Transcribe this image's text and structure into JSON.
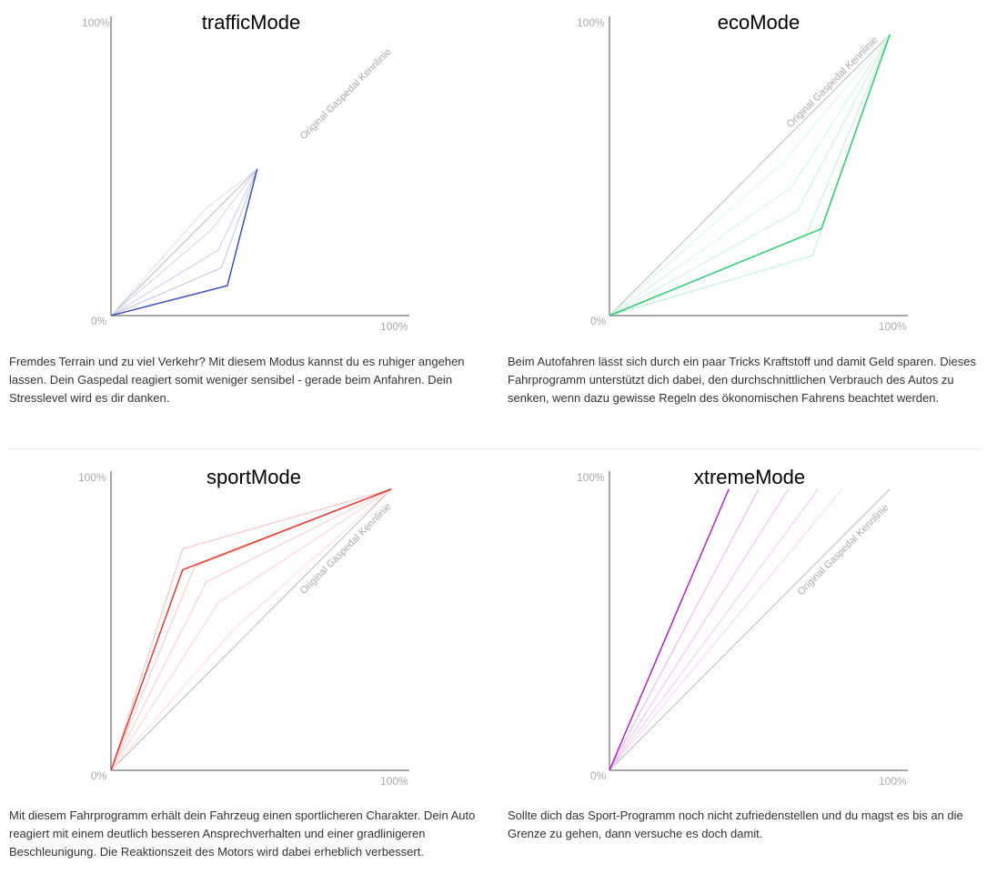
{
  "axis_labels": {
    "origin": "0%",
    "max": "100%"
  },
  "diagonal_label": "Original Gaspedal Kennlinie",
  "colors": {
    "axis": "#888888",
    "baseline": "#bbbbbb"
  },
  "panels": [
    {
      "title": "trafficMode",
      "color": "#3f51b5",
      "description": "Fremdes Terrain und zu viel Verkehr? Mit diesem Modus kannst du es ruhiger angehen lassen. Dein Gaspedal reagiert somit weniger sensibel - gerade beim Anfahren. Dein Stresslevel wird es dir danken."
    },
    {
      "title": "ecoMode",
      "color": "#2ecc71",
      "description": "Beim Autofahren lässt sich durch ein paar Tricks Kraftstoff und damit Geld sparen. Dieses Fahrprogramm unterstützt dich dabei, den durchschnittlichen Verbrauch des Autos zu senken, wenn dazu gewisse Regeln des ökonomischen Fahrens beachtet werden."
    },
    {
      "title": "sportMode",
      "color": "#e53935",
      "description": "Mit diesem Fahrprogramm erhält dein Fahrzeug einen sportlicheren Charakter. Dein Auto reagiert mit einem deutlich besseren Ansprechverhalten und einer gradlinigeren Beschleunigung. Die Reaktionszeit des Motors wird dabei erheblich verbessert."
    },
    {
      "title": "xtremeMode",
      "color": "#b620c9",
      "description": "Sollte dich das Sport-Programm noch nicht zufriedenstellen und du magst es bis an die Grenze zu gehen, dann versuche es doch damit."
    }
  ],
  "chart_data": [
    {
      "type": "line",
      "title": "trafficMode",
      "xlim": [
        0,
        100
      ],
      "ylim": [
        0,
        100
      ],
      "series": [
        {
          "name": "Original Gaspedal Kennlinie",
          "x": [
            0,
            49
          ],
          "y": [
            0,
            49
          ],
          "role": "baseline"
        },
        {
          "x": [
            0,
            32,
            49
          ],
          "y": [
            0,
            36,
            49
          ],
          "role": "step"
        },
        {
          "x": [
            0,
            34,
            49
          ],
          "y": [
            0,
            29,
            49
          ],
          "role": "step"
        },
        {
          "x": [
            0,
            36,
            49
          ],
          "y": [
            0,
            22,
            49
          ],
          "role": "step"
        },
        {
          "x": [
            0,
            37,
            49
          ],
          "y": [
            0,
            16,
            49
          ],
          "role": "step"
        },
        {
          "x": [
            0,
            39,
            49
          ],
          "y": [
            0,
            10,
            49
          ],
          "role": "mode"
        }
      ]
    },
    {
      "type": "line",
      "title": "ecoMode",
      "xlim": [
        0,
        100
      ],
      "ylim": [
        0,
        100
      ],
      "series": [
        {
          "name": "Original Gaspedal Kennlinie",
          "x": [
            0,
            94
          ],
          "y": [
            0,
            94
          ],
          "role": "baseline"
        },
        {
          "x": [
            0,
            58,
            94
          ],
          "y": [
            0,
            51,
            94
          ],
          "role": "step"
        },
        {
          "x": [
            0,
            61,
            94
          ],
          "y": [
            0,
            43,
            94
          ],
          "role": "step"
        },
        {
          "x": [
            0,
            63,
            94
          ],
          "y": [
            0,
            35,
            94
          ],
          "role": "step"
        },
        {
          "x": [
            0,
            66,
            94
          ],
          "y": [
            0,
            27,
            94
          ],
          "role": "step"
        },
        {
          "x": [
            0,
            68,
            94
          ],
          "y": [
            0,
            20,
            94
          ],
          "role": "step"
        },
        {
          "x": [
            0,
            71,
            94
          ],
          "y": [
            0,
            29,
            94
          ],
          "role": "mode"
        }
      ]
    },
    {
      "type": "line",
      "title": "sportMode",
      "xlim": [
        0,
        100
      ],
      "ylim": [
        0,
        100
      ],
      "series": [
        {
          "name": "Original Gaspedal Kennlinie",
          "x": [
            0,
            94
          ],
          "y": [
            0,
            94
          ],
          "role": "baseline"
        },
        {
          "x": [
            0,
            41,
            94
          ],
          "y": [
            0,
            47,
            94
          ],
          "role": "step"
        },
        {
          "x": [
            0,
            36,
            94
          ],
          "y": [
            0,
            56,
            94
          ],
          "role": "step"
        },
        {
          "x": [
            0,
            32,
            94
          ],
          "y": [
            0,
            63,
            94
          ],
          "role": "step"
        },
        {
          "x": [
            0,
            28,
            94
          ],
          "y": [
            0,
            68,
            94
          ],
          "role": "step"
        },
        {
          "x": [
            0,
            24,
            94
          ],
          "y": [
            0,
            74,
            94
          ],
          "role": "step"
        },
        {
          "x": [
            0,
            24,
            94
          ],
          "y": [
            0,
            67,
            94
          ],
          "role": "mode"
        }
      ]
    },
    {
      "type": "line",
      "title": "xtremeMode",
      "xlim": [
        0,
        100
      ],
      "ylim": [
        0,
        100
      ],
      "series": [
        {
          "name": "Original Gaspedal Kennlinie",
          "x": [
            0,
            94
          ],
          "y": [
            0,
            94
          ],
          "role": "baseline"
        },
        {
          "x": [
            0,
            78
          ],
          "y": [
            0,
            94
          ],
          "role": "step"
        },
        {
          "x": [
            0,
            70
          ],
          "y": [
            0,
            94
          ],
          "role": "step"
        },
        {
          "x": [
            0,
            60
          ],
          "y": [
            0,
            94
          ],
          "role": "step"
        },
        {
          "x": [
            0,
            50
          ],
          "y": [
            0,
            94
          ],
          "role": "step"
        },
        {
          "x": [
            0,
            40
          ],
          "y": [
            0,
            94
          ],
          "role": "mode"
        }
      ]
    }
  ]
}
